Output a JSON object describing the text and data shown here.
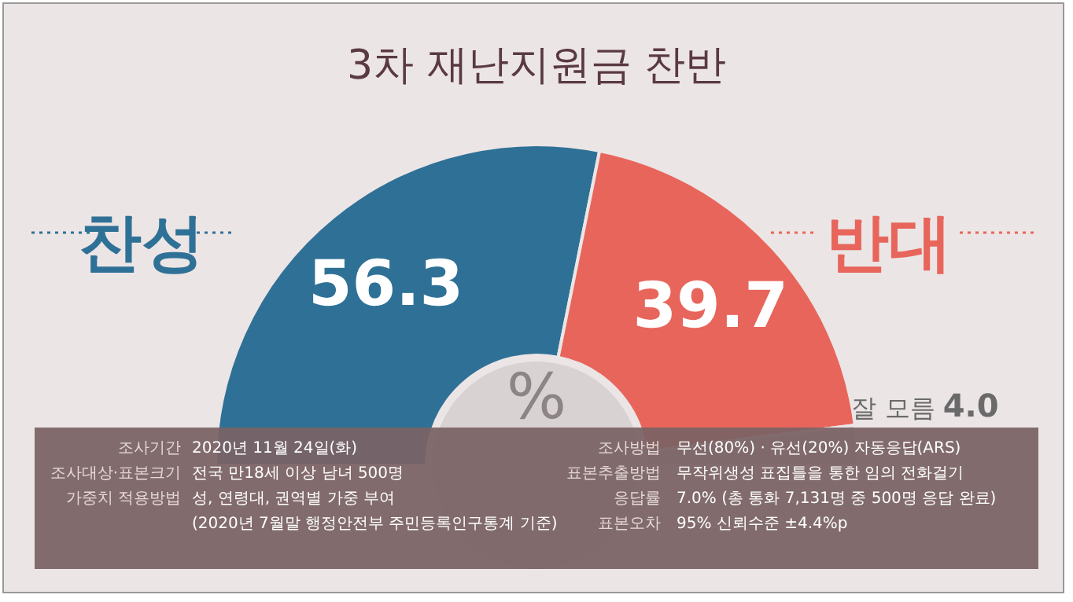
{
  "chart_data": {
    "type": "donut",
    "title": "3차 재난지원금 찬반",
    "categories": [
      "찬성",
      "반대",
      "잘 모름"
    ],
    "values": [
      56.3,
      39.7,
      4.0
    ],
    "value_labels": [
      "56.3",
      "39.7",
      "4.0"
    ],
    "colors": [
      "#2f7196",
      "#e8655b",
      "#c9c3c3"
    ],
    "legend": "left",
    "annotations": [
      "%",
      "조사기간",
      "2020년 11월 24일(화)",
      "조사대상·표본크기",
      "전국 만18세 이상 남녀 500명",
      "가중치 적용방법",
      "성, 연령대, 권역별 가중 부여\n(2020년 7월말 행정안전부 주민등록인구통계 기준)",
      "조사방법",
      "무선(80%) · 유선(20%) 자동응답(ARS)",
      "표본추출방법",
      "무작위생성 표집틀을 통한 임의 전화걸기",
      "응답률",
      "7.0% (총 통화 7,131명 중 500명 응답 완료)",
      "표본오차",
      "95% 신뢰수준 ±4.4%p"
    ]
  }
}
